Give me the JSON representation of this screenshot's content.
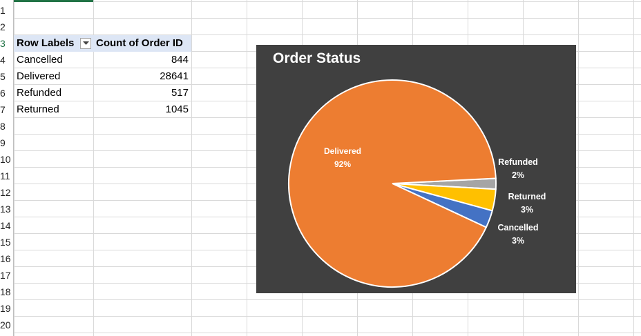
{
  "sheet": {
    "row_numbers": [
      "1",
      "2",
      "3",
      "4",
      "5",
      "6",
      "7",
      "8",
      "9",
      "10",
      "11",
      "12",
      "13",
      "14",
      "15",
      "16",
      "17",
      "18",
      "19",
      "20"
    ],
    "pivot": {
      "header_row_labels": "Row Labels",
      "header_count": "Count of Order ID",
      "rows": [
        {
          "label": "Cancelled",
          "value": "844"
        },
        {
          "label": "Delivered",
          "value": "28641"
        },
        {
          "label": "Refunded",
          "value": "517"
        },
        {
          "label": "Returned",
          "value": "1045"
        }
      ]
    }
  },
  "chart_data": {
    "type": "pie",
    "title": "Order Status",
    "categories": [
      "Delivered",
      "Refunded",
      "Returned",
      "Cancelled"
    ],
    "values": [
      28641,
      517,
      1045,
      844
    ],
    "percent_labels": [
      "92%",
      "2%",
      "3%",
      "3%"
    ],
    "colors": [
      "#ED7D31",
      "#A5A5A5",
      "#FFC000",
      "#4472C4"
    ],
    "background": "#404040",
    "legend": "none"
  }
}
